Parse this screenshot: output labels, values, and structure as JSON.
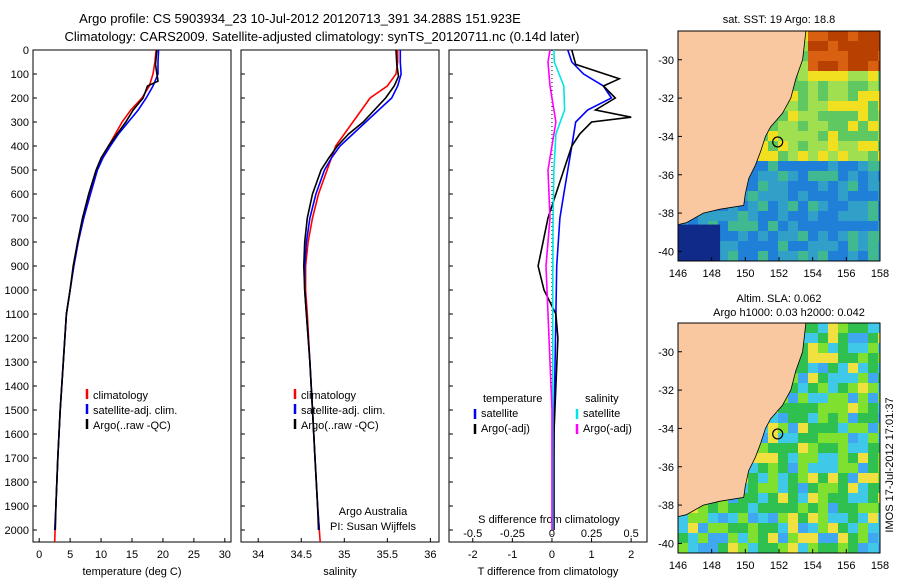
{
  "title_line1": "Argo profile: CS 5903934_23 10-Jul-2012 20120713_391 34.288S 151.923E",
  "title_line2": "Climatology: CARS2009. Satellite-adjusted climatology: synTS_20120711.nc (0.14d later)",
  "credit": "IMOS 17-Jul-2012 17:01:37",
  "colors": {
    "climatology": "#ff0000",
    "satellite": "#0000ff",
    "argo": "#000000",
    "sat_salinity": "#00e5e5",
    "argo_salinity": "#ff00ff",
    "land": "#f9c8a0"
  },
  "chart_data": [
    {
      "type": "line",
      "xlabel": "temperature (deg C)",
      "ylabel": "",
      "xlim": [
        -1,
        31
      ],
      "ylim": [
        2050,
        0
      ],
      "xticks": [
        "0",
        "5",
        "10",
        "15",
        "20",
        "25",
        "30"
      ],
      "yticks": [
        "0",
        "100",
        "200",
        "300",
        "400",
        "500",
        "600",
        "700",
        "800",
        "900",
        "1000",
        "1100",
        "1200",
        "1300",
        "1400",
        "1500",
        "1600",
        "1700",
        "1800",
        "1900",
        "2000"
      ],
      "legend": [
        "climatology",
        "satellite-adj. clim.",
        "Argo(..raw -QC)"
      ],
      "legend_placement": "center-right",
      "series": [
        {
          "name": "climatology",
          "color": "#ff0000",
          "points": [
            [
              18.9,
              0
            ],
            [
              18.7,
              50
            ],
            [
              18.4,
              100
            ],
            [
              17.8,
              150
            ],
            [
              16.6,
              200
            ],
            [
              14.8,
              250
            ],
            [
              13.4,
              300
            ],
            [
              12.3,
              350
            ],
            [
              11.2,
              400
            ],
            [
              10.2,
              450
            ],
            [
              9.3,
              500
            ],
            [
              8.2,
              600
            ],
            [
              7.2,
              700
            ],
            [
              6.3,
              800
            ],
            [
              5.6,
              900
            ],
            [
              5.0,
              1000
            ],
            [
              4.4,
              1100
            ],
            [
              3.9,
              1300
            ],
            [
              3.4,
              1500
            ],
            [
              3.0,
              1700
            ],
            [
              2.7,
              1900
            ],
            [
              2.5,
              2050
            ]
          ]
        },
        {
          "name": "satellite-adj. clim.",
          "color": "#0000ff",
          "points": [
            [
              19.3,
              0
            ],
            [
              19.2,
              50
            ],
            [
              19.2,
              100
            ],
            [
              18.4,
              150
            ],
            [
              17.3,
              200
            ],
            [
              16.0,
              250
            ],
            [
              14.4,
              300
            ],
            [
              12.8,
              350
            ],
            [
              11.5,
              400
            ],
            [
              10.3,
              450
            ],
            [
              9.4,
              500
            ],
            [
              8.3,
              600
            ],
            [
              7.2,
              700
            ],
            [
              6.3,
              800
            ],
            [
              5.6,
              900
            ],
            [
              5.0,
              1000
            ],
            [
              4.4,
              1100
            ],
            [
              3.9,
              1300
            ],
            [
              3.4,
              1500
            ],
            [
              3.0,
              1700
            ],
            [
              2.7,
              1900
            ],
            [
              2.5,
              2000
            ]
          ]
        },
        {
          "name": "Argo(..raw -QC)",
          "color": "#000000",
          "points": [
            [
              19.0,
              0
            ],
            [
              18.8,
              60
            ],
            [
              19.2,
              130
            ],
            [
              17.5,
              150
            ],
            [
              16.8,
              200
            ],
            [
              15.2,
              250
            ],
            [
              14.0,
              300
            ],
            [
              12.6,
              350
            ],
            [
              11.2,
              400
            ],
            [
              10.0,
              450
            ],
            [
              9.2,
              500
            ],
            [
              8.0,
              600
            ],
            [
              7.0,
              700
            ],
            [
              6.2,
              800
            ],
            [
              5.5,
              900
            ],
            [
              5.0,
              1000
            ],
            [
              4.4,
              1100
            ],
            [
              3.9,
              1300
            ],
            [
              3.4,
              1500
            ],
            [
              3.0,
              1700
            ],
            [
              2.7,
              1900
            ],
            [
              2.6,
              2000
            ]
          ]
        }
      ]
    },
    {
      "type": "line",
      "xlabel": "salinity",
      "xlim": [
        33.8,
        36.1
      ],
      "ylim": [
        2050,
        0
      ],
      "xticks": [
        "34",
        "34.5",
        "35",
        "35.5",
        "36"
      ],
      "legend": [
        "climatology",
        "satellite-adj. clim.",
        "Argo(..raw -QC)"
      ],
      "legend_placement": "center-right",
      "annotation": [
        "Argo Australia",
        "PI: Susan Wijffels"
      ],
      "series": [
        {
          "name": "climatology",
          "color": "#ff0000",
          "points": [
            [
              35.62,
              0
            ],
            [
              35.62,
              50
            ],
            [
              35.6,
              100
            ],
            [
              35.5,
              150
            ],
            [
              35.3,
              200
            ],
            [
              35.2,
              250
            ],
            [
              35.1,
              300
            ],
            [
              35.0,
              350
            ],
            [
              34.9,
              400
            ],
            [
              34.85,
              450
            ],
            [
              34.8,
              500
            ],
            [
              34.7,
              600
            ],
            [
              34.63,
              700
            ],
            [
              34.58,
              800
            ],
            [
              34.55,
              900
            ],
            [
              34.55,
              1000
            ],
            [
              34.57,
              1100
            ],
            [
              34.6,
              1300
            ],
            [
              34.63,
              1500
            ],
            [
              34.66,
              1700
            ],
            [
              34.69,
              1900
            ],
            [
              34.72,
              2050
            ]
          ]
        },
        {
          "name": "satellite-adj. clim.",
          "color": "#0000ff",
          "points": [
            [
              35.65,
              0
            ],
            [
              35.65,
              50
            ],
            [
              35.66,
              100
            ],
            [
              35.62,
              150
            ],
            [
              35.55,
              200
            ],
            [
              35.4,
              250
            ],
            [
              35.25,
              300
            ],
            [
              35.1,
              350
            ],
            [
              34.95,
              400
            ],
            [
              34.85,
              450
            ],
            [
              34.77,
              500
            ],
            [
              34.67,
              600
            ],
            [
              34.6,
              700
            ],
            [
              34.56,
              800
            ],
            [
              34.54,
              900
            ],
            [
              34.54,
              1000
            ],
            [
              34.56,
              1100
            ],
            [
              34.6,
              1300
            ],
            [
              34.63,
              1500
            ],
            [
              34.66,
              1700
            ],
            [
              34.69,
              1900
            ],
            [
              34.71,
              2000
            ]
          ]
        },
        {
          "name": "Argo(..raw -QC)",
          "color": "#000000",
          "points": [
            [
              35.6,
              0
            ],
            [
              35.61,
              60
            ],
            [
              35.63,
              110
            ],
            [
              35.58,
              150
            ],
            [
              35.48,
              200
            ],
            [
              35.35,
              250
            ],
            [
              35.22,
              300
            ],
            [
              35.05,
              350
            ],
            [
              34.92,
              400
            ],
            [
              34.82,
              450
            ],
            [
              34.73,
              500
            ],
            [
              34.63,
              600
            ],
            [
              34.57,
              700
            ],
            [
              34.54,
              800
            ],
            [
              34.53,
              900
            ],
            [
              34.54,
              1000
            ],
            [
              34.56,
              1100
            ],
            [
              34.6,
              1300
            ],
            [
              34.63,
              1500
            ],
            [
              34.66,
              1700
            ],
            [
              34.69,
              1900
            ],
            [
              34.7,
              2000
            ]
          ]
        }
      ]
    },
    {
      "type": "line",
      "xlabel": "T difference from climatology",
      "xlabel_top": "S difference from climatology",
      "xlim": [
        -2.6,
        2.4
      ],
      "ylim": [
        2050,
        0
      ],
      "xticks": [
        "-2",
        "-1",
        "0",
        "1",
        "2"
      ],
      "xticks_top": [
        "-0.5",
        "-0.25",
        "0",
        "0.25",
        "0.5"
      ],
      "legend": [
        "temperature",
        "satellite",
        "Argo(-adj)",
        "salinity",
        "satellite",
        "Argo(-adj)"
      ],
      "legend_placement": "lower-center",
      "series": [
        {
          "name": "satellite",
          "color": "#0000ff",
          "points": [
            [
              0.4,
              0
            ],
            [
              0.5,
              50
            ],
            [
              0.8,
              100
            ],
            [
              1.3,
              150
            ],
            [
              1.5,
              200
            ],
            [
              0.9,
              250
            ],
            [
              0.6,
              300
            ],
            [
              0.5,
              400
            ],
            [
              0.4,
              500
            ],
            [
              0.3,
              600
            ],
            [
              0.2,
              700
            ],
            [
              0.12,
              900
            ],
            [
              0.1,
              1100
            ],
            [
              0.08,
              1300
            ],
            [
              0.06,
              1500
            ],
            [
              0.05,
              1700
            ],
            [
              0.05,
              2000
            ]
          ]
        },
        {
          "name": "Argo(-adj)",
          "color": "#000000",
          "points": [
            [
              0.5,
              0
            ],
            [
              0.6,
              60
            ],
            [
              1.7,
              120
            ],
            [
              1.3,
              150
            ],
            [
              1.6,
              200
            ],
            [
              1.1,
              250
            ],
            [
              2.0,
              280
            ],
            [
              1.0,
              300
            ],
            [
              0.7,
              350
            ],
            [
              0.5,
              400
            ],
            [
              0.3,
              500
            ],
            [
              0.1,
              600
            ],
            [
              -0.1,
              700
            ],
            [
              -0.35,
              900
            ],
            [
              -0.2,
              1000
            ],
            [
              0.1,
              1100
            ],
            [
              0.15,
              1200
            ],
            [
              0.1,
              1400
            ],
            [
              0.05,
              1600
            ],
            [
              0.05,
              2000
            ]
          ]
        },
        {
          "name": "satellite",
          "color": "#00e5e5",
          "points": [
            [
              0.05,
              0
            ],
            [
              0.06,
              50
            ],
            [
              0.3,
              150
            ],
            [
              0.32,
              250
            ],
            [
              0.1,
              350
            ],
            [
              0.05,
              500
            ],
            [
              0.03,
              700
            ],
            [
              0.02,
              1000
            ],
            [
              0.02,
              1500
            ],
            [
              0.02,
              2000
            ]
          ]
        },
        {
          "name": "Argo(-adj)",
          "color": "#ff00ff",
          "points": [
            [
              -0.05,
              0
            ],
            [
              -0.1,
              50
            ],
            [
              -0.05,
              150
            ],
            [
              0.1,
              300
            ],
            [
              -0.1,
              500
            ],
            [
              -0.05,
              700
            ],
            [
              -0.15,
              900
            ],
            [
              -0.1,
              1100
            ],
            [
              -0.05,
              1300
            ],
            [
              0.0,
              1500
            ],
            [
              0.0,
              2000
            ]
          ]
        }
      ]
    },
    {
      "type": "heatmap",
      "title": "sat. SST: 19 Argo: 18.8",
      "xticks": [
        "146",
        "148",
        "150",
        "152",
        "154",
        "156",
        "158"
      ],
      "yticks": [
        "-30",
        "-32",
        "-34",
        "-36",
        "-38",
        "-40"
      ],
      "xlim": [
        146,
        158
      ],
      "ylim": [
        -40.5,
        -28.5
      ],
      "marker": {
        "lon": 151.923,
        "lat": -34.288
      }
    },
    {
      "type": "heatmap",
      "title": "Altim. SLA: 0.062",
      "subtitle": "Argo h1000: 0.03 h2000: 0.042",
      "xticks": [
        "146",
        "148",
        "150",
        "152",
        "154",
        "156",
        "158"
      ],
      "yticks": [
        "-30",
        "-32",
        "-34",
        "-36",
        "-38",
        "-40"
      ],
      "xlim": [
        146,
        158
      ],
      "ylim": [
        -40.5,
        -28.5
      ],
      "marker": {
        "lon": 151.923,
        "lat": -34.288
      }
    }
  ]
}
